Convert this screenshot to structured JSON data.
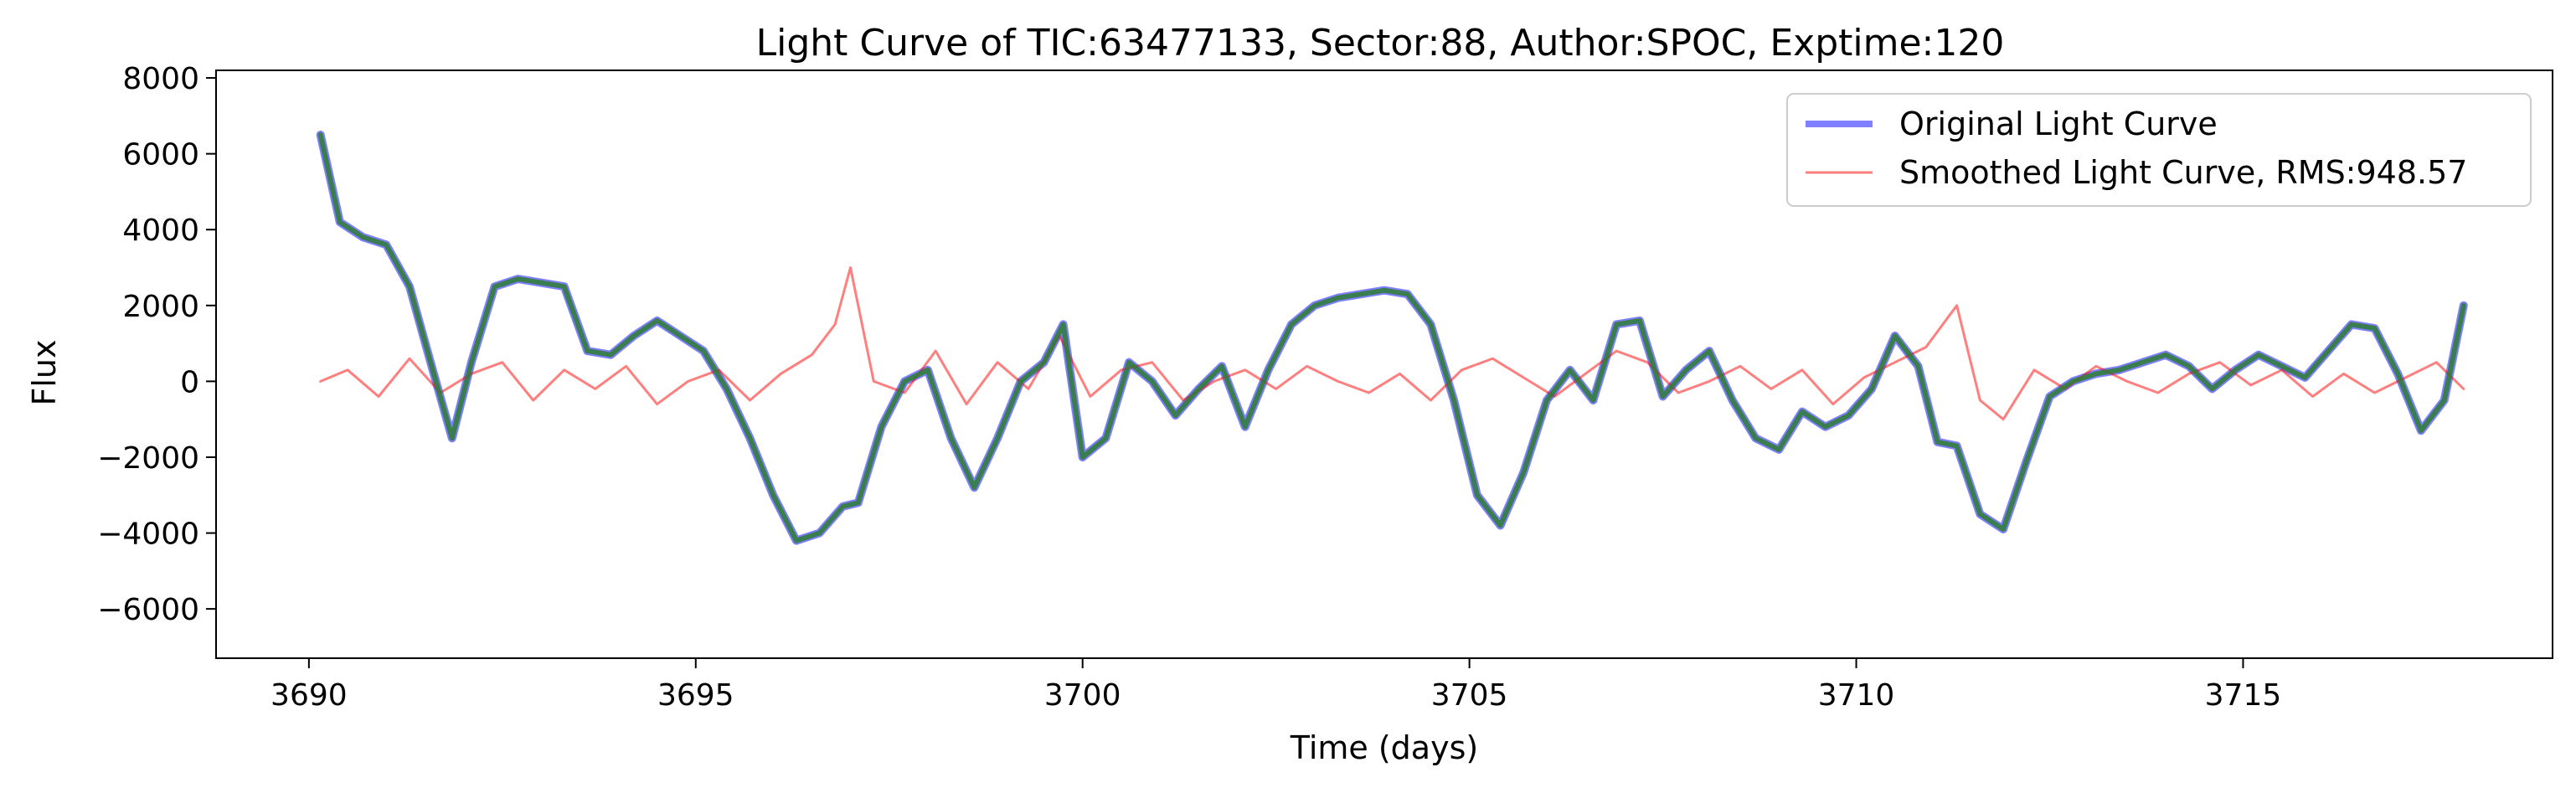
{
  "chart_data": {
    "type": "line",
    "title": "Light Curve of TIC:63477133, Sector:88, Author:SPOC, Exptime:120",
    "xlabel": "Time (days)",
    "ylabel": "Flux",
    "xlim": [
      3688.8,
      3719.0
    ],
    "ylim": [
      -7300,
      8200
    ],
    "xticks": [
      3690,
      3695,
      3700,
      3705,
      3710,
      3715
    ],
    "yticks": [
      -6000,
      -4000,
      -2000,
      0,
      2000,
      4000,
      6000,
      8000
    ],
    "grid": false,
    "legend_position": "top-right",
    "series": [
      {
        "name": "Original Light Curve",
        "color": "#0000ff",
        "opacity": 0.5,
        "x": [
          3690.15,
          3690.4,
          3690.7,
          3691.0,
          3691.3,
          3691.6,
          3691.85,
          3692.1,
          3692.4,
          3692.7,
          3693.0,
          3693.3,
          3693.6,
          3693.9,
          3694.2,
          3694.5,
          3694.8,
          3695.1,
          3695.4,
          3695.7,
          3696.0,
          3696.3,
          3696.6,
          3696.9,
          3697.1,
          3697.4,
          3697.7,
          3698.0,
          3698.3,
          3698.6,
          3698.9,
          3699.2,
          3699.5,
          3699.75,
          3700.0,
          3700.3,
          3700.6,
          3700.9,
          3701.2,
          3701.5,
          3701.8,
          3702.1,
          3702.4,
          3702.7,
          3703.0,
          3703.3,
          3703.6,
          3703.9,
          3704.2,
          3704.5,
          3704.8,
          3705.1,
          3705.4,
          3705.7,
          3706.0,
          3706.3,
          3706.6,
          3706.9,
          3707.2,
          3707.5,
          3707.8,
          3708.1,
          3708.4,
          3708.7,
          3709.0,
          3709.3,
          3709.6,
          3709.9,
          3710.2,
          3710.5,
          3710.8,
          3711.05,
          3711.3,
          3711.6,
          3711.9,
          3712.2,
          3712.5,
          3712.8,
          3713.1,
          3713.4,
          3713.7,
          3714.0,
          3714.3,
          3714.6,
          3714.9,
          3715.2,
          3715.5,
          3715.8,
          3716.1,
          3716.4,
          3716.7,
          3717.0,
          3717.3,
          3717.6,
          3717.85
        ],
        "y": [
          6500,
          4200,
          3800,
          3600,
          2500,
          300,
          -1500,
          500,
          2500,
          2700,
          2600,
          2500,
          800,
          700,
          1200,
          1600,
          1200,
          800,
          -200,
          -1500,
          -3000,
          -4200,
          -4000,
          -3300,
          -3200,
          -1200,
          0,
          300,
          -1500,
          -2800,
          -1500,
          0,
          500,
          1500,
          -2000,
          -1500,
          500,
          0,
          -900,
          -200,
          400,
          -1200,
          300,
          1500,
          2000,
          2200,
          2300,
          2400,
          2300,
          1500,
          -500,
          -3000,
          -3800,
          -2400,
          -500,
          300,
          -500,
          1500,
          1600,
          -400,
          300,
          800,
          -500,
          -1500,
          -1800,
          -800,
          -1200,
          -900,
          -200,
          1200,
          400,
          -1600,
          -1700,
          -3500,
          -3900,
          -2100,
          -400,
          0,
          200,
          300,
          500,
          700,
          400,
          -200,
          300,
          700,
          400,
          100,
          800,
          1500,
          1400,
          200,
          -1300,
          -500,
          2000
        ]
      },
      {
        "name": "Smoothed Light Curve, RMS:948.57",
        "color": "#ff0000",
        "opacity": 0.5,
        "x": [
          3690.15,
          3690.5,
          3690.9,
          3691.3,
          3691.7,
          3692.1,
          3692.5,
          3692.9,
          3693.3,
          3693.7,
          3694.1,
          3694.5,
          3694.9,
          3695.3,
          3695.7,
          3696.1,
          3696.5,
          3696.8,
          3697.0,
          3697.3,
          3697.7,
          3698.1,
          3698.5,
          3698.9,
          3699.3,
          3699.7,
          3700.1,
          3700.5,
          3700.9,
          3701.3,
          3701.7,
          3702.1,
          3702.5,
          3702.9,
          3703.3,
          3703.7,
          3704.1,
          3704.5,
          3704.9,
          3705.3,
          3705.7,
          3706.1,
          3706.5,
          3706.9,
          3707.3,
          3707.7,
          3708.1,
          3708.5,
          3708.9,
          3709.3,
          3709.7,
          3710.1,
          3710.5,
          3710.9,
          3711.3,
          3711.6,
          3711.9,
          3712.3,
          3712.7,
          3713.1,
          3713.5,
          3713.9,
          3714.3,
          3714.7,
          3715.1,
          3715.5,
          3715.9,
          3716.3,
          3716.7,
          3717.1,
          3717.5,
          3717.85
        ],
        "y": [
          0,
          300,
          -400,
          600,
          -300,
          200,
          500,
          -500,
          300,
          -200,
          400,
          -600,
          0,
          300,
          -500,
          200,
          700,
          1500,
          3000,
          0,
          -300,
          800,
          -600,
          500,
          -200,
          1200,
          -400,
          300,
          500,
          -500,
          0,
          300,
          -200,
          400,
          0,
          -300,
          200,
          -500,
          300,
          600,
          100,
          -400,
          200,
          800,
          500,
          -300,
          0,
          400,
          -200,
          300,
          -600,
          100,
          500,
          900,
          2000,
          -500,
          -1000,
          300,
          -200,
          400,
          0,
          -300,
          200,
          500,
          -100,
          300,
          -400,
          200,
          -300,
          100,
          500,
          -200
        ]
      },
      {
        "name": "",
        "color": "#2e7d32",
        "opacity": 0.85,
        "x": [
          3690.15,
          3690.4,
          3690.7,
          3691.0,
          3691.3,
          3691.6,
          3691.85,
          3692.1,
          3692.4,
          3692.7,
          3693.0,
          3693.3,
          3693.6,
          3693.9,
          3694.2,
          3694.5,
          3694.8,
          3695.1,
          3695.4,
          3695.7,
          3696.0,
          3696.3,
          3696.6,
          3696.9,
          3697.1,
          3697.4,
          3697.7,
          3698.0,
          3698.3,
          3698.6,
          3698.9,
          3699.2,
          3699.5,
          3699.75,
          3700.0,
          3700.3,
          3700.6,
          3700.9,
          3701.2,
          3701.5,
          3701.8,
          3702.1,
          3702.4,
          3702.7,
          3703.0,
          3703.3,
          3703.6,
          3703.9,
          3704.2,
          3704.5,
          3704.8,
          3705.1,
          3705.4,
          3705.7,
          3706.0,
          3706.3,
          3706.6,
          3706.9,
          3707.2,
          3707.5,
          3707.8,
          3708.1,
          3708.4,
          3708.7,
          3709.0,
          3709.3,
          3709.6,
          3709.9,
          3710.2,
          3710.5,
          3710.8,
          3711.05,
          3711.3,
          3711.6,
          3711.9,
          3712.2,
          3712.5,
          3712.8,
          3713.1,
          3713.4,
          3713.7,
          3714.0,
          3714.3,
          3714.6,
          3714.9,
          3715.2,
          3715.5,
          3715.8,
          3716.1,
          3716.4,
          3716.7,
          3717.0,
          3717.3,
          3717.6,
          3717.85
        ],
        "y": [
          6500,
          4200,
          3800,
          3600,
          2500,
          300,
          -1500,
          500,
          2500,
          2700,
          2600,
          2500,
          800,
          700,
          1200,
          1600,
          1200,
          800,
          -200,
          -1500,
          -3000,
          -4200,
          -4000,
          -3300,
          -3200,
          -1200,
          0,
          300,
          -1500,
          -2800,
          -1500,
          0,
          500,
          1500,
          -2000,
          -1500,
          500,
          0,
          -900,
          -200,
          400,
          -1200,
          300,
          1500,
          2000,
          2200,
          2300,
          2400,
          2300,
          1500,
          -500,
          -3000,
          -3800,
          -2400,
          -500,
          300,
          -500,
          1500,
          1600,
          -400,
          300,
          800,
          -500,
          -1500,
          -1800,
          -800,
          -1200,
          -900,
          -200,
          1200,
          400,
          -1600,
          -1700,
          -3500,
          -3900,
          -2100,
          -400,
          0,
          200,
          300,
          500,
          700,
          400,
          -200,
          300,
          700,
          400,
          100,
          800,
          1500,
          1400,
          200,
          -1300,
          -500,
          2000
        ]
      }
    ]
  }
}
